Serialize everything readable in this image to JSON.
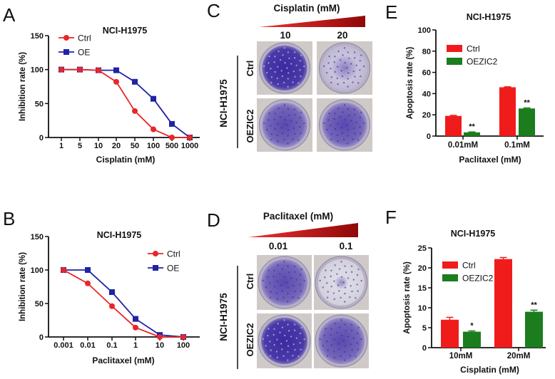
{
  "colors": {
    "ctrl_line": "#e8262a",
    "oe_line": "#1f23a6",
    "ctrl_bar": "#f01c1c",
    "oe_bar": "#1b7d1e",
    "gradient_dark": "#9b0b0b",
    "gradient_light": "#e21b1b",
    "stain": "#4a35a8"
  },
  "panels": {
    "A": {
      "letter": "A"
    },
    "B": {
      "letter": "B"
    },
    "C": {
      "letter": "C",
      "treatment": "Cisplatin (mM)",
      "doses": [
        "10",
        "20"
      ],
      "cell_line": "NCI-H1975",
      "rows": [
        "Ctrl",
        "OEZIC2"
      ]
    },
    "D": {
      "letter": "D",
      "treatment": "Paclitaxel (mM)",
      "doses": [
        "0.01",
        "0.1"
      ],
      "cell_line": "NCI-H1975",
      "rows": [
        "Ctrl",
        "OEZIC2"
      ]
    },
    "E": {
      "letter": "E"
    },
    "F": {
      "letter": "F"
    }
  },
  "chart_data": [
    {
      "panel": "A",
      "type": "line",
      "title": "NCI-H1975",
      "xlabel": "Cisplatin (mM)",
      "ylabel": "Inhibition rate (%)",
      "categories": [
        "1",
        "5",
        "10",
        "20",
        "50",
        "100",
        "500",
        "1000"
      ],
      "ylim": [
        0,
        150
      ],
      "yticks": [
        "0",
        "50",
        "100",
        "150"
      ],
      "legend": "top-left",
      "series": [
        {
          "name": "Ctrl",
          "marker": "circle",
          "values": [
            100,
            100,
            99,
            82,
            39,
            12,
            0,
            0
          ]
        },
        {
          "name": "OE",
          "marker": "square",
          "values": [
            100,
            100,
            99,
            99,
            82,
            57,
            20,
            0
          ]
        }
      ]
    },
    {
      "panel": "B",
      "type": "line",
      "title": "NCI-H1975",
      "xlabel": "Paclitaxel (mM)",
      "ylabel": "Inhibition rate (%)",
      "categories": [
        "0.001",
        "0.01",
        "0.1",
        "1",
        "10",
        "100"
      ],
      "ylim": [
        0,
        150
      ],
      "yticks": [
        "0",
        "50",
        "100",
        "150"
      ],
      "legend": "top-right",
      "series": [
        {
          "name": "Ctrl",
          "marker": "circle",
          "values": [
            100,
            80,
            46,
            14,
            0,
            0
          ]
        },
        {
          "name": "OE",
          "marker": "square",
          "values": [
            100,
            100,
            67,
            27,
            3,
            0
          ]
        }
      ]
    },
    {
      "panel": "E",
      "type": "bar",
      "title": "NCI-H1975",
      "xlabel": "Paclitaxel (mM)",
      "ylabel": "Apoptosis rate (%)",
      "categories": [
        "0.01mM",
        "0.1mM"
      ],
      "ylim": [
        0,
        100
      ],
      "yticks": [
        "0",
        "20",
        "40",
        "60",
        "80",
        "100"
      ],
      "legend": "top-left",
      "series": [
        {
          "name": "Ctrl",
          "values": [
            19,
            46
          ],
          "errors": [
            0.5,
            0.4
          ]
        },
        {
          "name": "OEZIC2",
          "values": [
            3.5,
            26
          ],
          "errors": [
            0.4,
            0.5
          ],
          "significance": [
            "**",
            "**"
          ]
        }
      ]
    },
    {
      "panel": "F",
      "type": "bar",
      "title": "NCI-H1975",
      "xlabel": "Cisplatin (mM)",
      "ylabel": "Apoptosis rate (%)",
      "categories": [
        "10mM",
        "20mM"
      ],
      "ylim": [
        0,
        25
      ],
      "yticks": [
        "0",
        "5",
        "10",
        "15",
        "20",
        "25"
      ],
      "legend": "top-left",
      "series": [
        {
          "name": "Ctrl",
          "values": [
            7,
            22.2
          ],
          "errors": [
            0.6,
            0.4
          ]
        },
        {
          "name": "OEZIC2",
          "values": [
            4,
            9
          ],
          "errors": [
            0.2,
            0.4
          ],
          "significance": [
            "*",
            "**"
          ]
        }
      ]
    }
  ]
}
